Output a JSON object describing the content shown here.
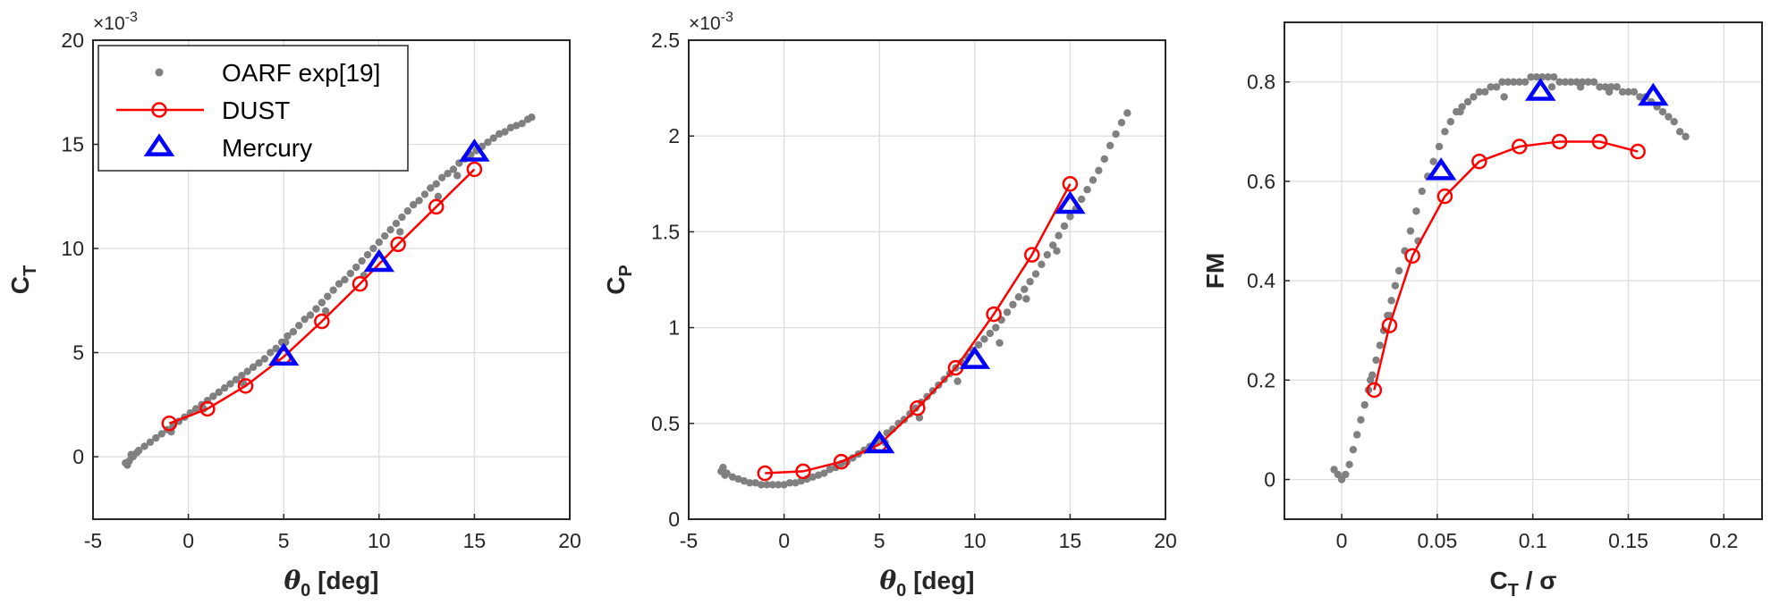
{
  "chart_data": [
    {
      "type": "scatter",
      "xlabel": "θ0 [deg]",
      "ylabel": "CT",
      "xlim": [
        -5,
        20
      ],
      "ylim": [
        -3,
        20
      ],
      "y_scale_label": "×10-3",
      "xticks": [
        "-5",
        "0",
        "5",
        "10",
        "15",
        "20"
      ],
      "yticks": [
        "0",
        "5",
        "10",
        "15",
        "20"
      ],
      "grid": true,
      "legend_position": "top-left",
      "series": [
        {
          "name": "OARF exp[19]",
          "marker": "dot",
          "x": [
            -3.3,
            -3.1,
            -2.9,
            -2.6,
            -2.3,
            -2.0,
            -1.7,
            -1.4,
            -1.1,
            -0.8,
            -0.5,
            -0.2,
            0.1,
            0.4,
            0.7,
            1.0,
            1.3,
            1.6,
            1.9,
            2.2,
            2.5,
            2.8,
            3.1,
            3.4,
            3.7,
            4.0,
            4.3,
            4.6,
            4.9,
            5.2,
            5.5,
            5.8,
            6.1,
            6.4,
            6.7,
            7.0,
            7.3,
            7.6,
            7.9,
            8.2,
            8.5,
            8.8,
            9.1,
            9.4,
            9.7,
            10.0,
            10.3,
            10.6,
            10.9,
            11.2,
            11.5,
            11.8,
            12.1,
            12.4,
            12.7,
            13.0,
            13.3,
            13.6,
            13.9,
            14.2,
            14.5,
            14.8,
            15.1,
            15.4,
            15.7,
            16.0,
            16.3,
            16.6,
            16.9,
            17.2,
            17.5,
            17.8,
            18.0,
            -3.2,
            -3.0,
            -2.7,
            -0.9,
            0.8,
            2.9,
            5.1,
            7.2,
            9.2,
            11.1,
            13.1,
            14.1
          ],
          "y": [
            -0.3,
            -0.2,
            0.0,
            0.3,
            0.5,
            0.7,
            0.9,
            1.1,
            1.3,
            1.5,
            1.7,
            1.9,
            2.1,
            2.3,
            2.5,
            2.7,
            2.9,
            3.1,
            3.3,
            3.5,
            3.7,
            3.9,
            4.1,
            4.3,
            4.5,
            4.7,
            5.0,
            5.2,
            5.5,
            5.8,
            6.0,
            6.3,
            6.6,
            6.8,
            7.1,
            7.4,
            7.7,
            8.0,
            8.3,
            8.5,
            8.8,
            9.1,
            9.4,
            9.7,
            10.0,
            10.3,
            10.6,
            10.9,
            11.2,
            11.5,
            11.8,
            12.1,
            12.3,
            12.6,
            12.9,
            13.1,
            13.4,
            13.6,
            13.8,
            14.1,
            14.3,
            14.5,
            14.7,
            14.9,
            15.1,
            15.3,
            15.5,
            15.6,
            15.8,
            15.9,
            16.0,
            16.2,
            16.3,
            -0.4,
            0.1,
            0.2,
            1.2,
            2.3,
            3.5,
            5.5,
            7.0,
            8.7,
            10.8,
            12.5,
            13.5
          ]
        },
        {
          "name": "DUST",
          "marker": "circle-line",
          "color": "#ff0000",
          "x": [
            -1,
            1,
            3,
            5,
            7,
            9,
            11,
            13,
            15
          ],
          "y": [
            1.6,
            2.3,
            3.4,
            4.8,
            6.5,
            8.3,
            10.2,
            12.0,
            13.8
          ]
        },
        {
          "name": "Mercury",
          "marker": "triangle",
          "color": "#0000ff",
          "x": [
            5,
            10,
            15
          ],
          "y": [
            4.8,
            9.3,
            14.6
          ]
        }
      ]
    },
    {
      "type": "scatter",
      "xlabel": "θ0 [deg]",
      "ylabel": "CP",
      "xlim": [
        -5,
        20
      ],
      "ylim": [
        0,
        2.5
      ],
      "y_scale_label": "×10-3",
      "xticks": [
        "-5",
        "0",
        "5",
        "10",
        "15",
        "20"
      ],
      "yticks": [
        "0",
        "0.5",
        "1",
        "1.5",
        "2",
        "2.5"
      ],
      "grid": true,
      "series": [
        {
          "name": "OARF exp[19]",
          "marker": "dot",
          "x": [
            -3.3,
            -3.0,
            -2.7,
            -2.4,
            -2.1,
            -1.8,
            -1.5,
            -1.2,
            -0.9,
            -0.6,
            -0.3,
            0.0,
            0.3,
            0.6,
            0.9,
            1.2,
            1.5,
            1.8,
            2.1,
            2.4,
            2.7,
            3.0,
            3.3,
            3.6,
            3.9,
            4.2,
            4.5,
            4.8,
            5.1,
            5.4,
            5.7,
            6.0,
            6.3,
            6.6,
            6.9,
            7.2,
            7.5,
            7.8,
            8.1,
            8.4,
            8.7,
            9.0,
            9.3,
            9.6,
            9.9,
            10.2,
            10.5,
            10.8,
            11.1,
            11.4,
            11.7,
            12.0,
            12.3,
            12.6,
            12.9,
            13.2,
            13.5,
            13.8,
            14.1,
            14.4,
            14.7,
            15.0,
            15.3,
            15.6,
            15.9,
            16.2,
            16.5,
            16.8,
            17.1,
            17.4,
            17.7,
            18.0,
            -3.2,
            -3.1,
            5.3,
            7.1,
            9.1,
            11.3,
            12.7,
            14.3
          ],
          "y": [
            0.25,
            0.24,
            0.22,
            0.21,
            0.2,
            0.19,
            0.19,
            0.18,
            0.18,
            0.18,
            0.18,
            0.18,
            0.19,
            0.19,
            0.2,
            0.21,
            0.22,
            0.23,
            0.24,
            0.26,
            0.27,
            0.29,
            0.3,
            0.32,
            0.34,
            0.36,
            0.38,
            0.4,
            0.42,
            0.45,
            0.47,
            0.5,
            0.52,
            0.55,
            0.58,
            0.61,
            0.64,
            0.67,
            0.7,
            0.73,
            0.76,
            0.79,
            0.82,
            0.85,
            0.88,
            0.91,
            0.94,
            0.97,
            1.0,
            1.04,
            1.08,
            1.12,
            1.16,
            1.2,
            1.24,
            1.28,
            1.33,
            1.38,
            1.43,
            1.48,
            1.53,
            1.58,
            1.62,
            1.67,
            1.72,
            1.77,
            1.82,
            1.88,
            1.95,
            2.01,
            2.07,
            2.12,
            0.27,
            0.23,
            0.4,
            0.53,
            0.72,
            0.92,
            1.15,
            1.4
          ]
        },
        {
          "name": "DUST",
          "marker": "circle-line",
          "color": "#ff0000",
          "x": [
            -1,
            1,
            3,
            5,
            7,
            9,
            11,
            13,
            15
          ],
          "y": [
            0.24,
            0.25,
            0.3,
            0.39,
            0.58,
            0.79,
            1.07,
            1.38,
            1.75
          ]
        },
        {
          "name": "Mercury",
          "marker": "triangle",
          "color": "#0000ff",
          "x": [
            5,
            10,
            15
          ],
          "y": [
            0.39,
            0.83,
            1.64
          ]
        }
      ]
    },
    {
      "type": "scatter",
      "xlabel": "CT / σ",
      "ylabel": "FM",
      "xlim": [
        -0.03,
        0.22
      ],
      "ylim": [
        -0.08,
        0.92
      ],
      "xticks": [
        "0",
        "0.05",
        "0.1",
        "0.15",
        "0.2"
      ],
      "yticks": [
        "0",
        "0.2",
        "0.4",
        "0.6",
        "0.8"
      ],
      "grid": true,
      "series": [
        {
          "name": "OARF exp[19]",
          "marker": "dot",
          "x": [
            -0.004,
            -0.002,
            0.0,
            0.002,
            0.004,
            0.006,
            0.008,
            0.01,
            0.012,
            0.014,
            0.016,
            0.018,
            0.02,
            0.022,
            0.024,
            0.026,
            0.028,
            0.03,
            0.033,
            0.036,
            0.039,
            0.042,
            0.045,
            0.048,
            0.051,
            0.054,
            0.057,
            0.06,
            0.063,
            0.066,
            0.069,
            0.072,
            0.075,
            0.078,
            0.081,
            0.084,
            0.087,
            0.09,
            0.093,
            0.096,
            0.099,
            0.102,
            0.105,
            0.108,
            0.111,
            0.114,
            0.117,
            0.12,
            0.123,
            0.126,
            0.129,
            0.132,
            0.135,
            0.138,
            0.141,
            0.144,
            0.147,
            0.15,
            0.153,
            0.156,
            0.159,
            0.162,
            0.165,
            0.168,
            0.171,
            0.174,
            0.177,
            0.18,
            0.015,
            0.025,
            0.04,
            0.062,
            0.085,
            0.11,
            0.125,
            0.14
          ],
          "y": [
            0.02,
            0.01,
            0.0,
            0.01,
            0.03,
            0.06,
            0.09,
            0.12,
            0.15,
            0.18,
            0.21,
            0.24,
            0.27,
            0.3,
            0.33,
            0.36,
            0.39,
            0.42,
            0.46,
            0.5,
            0.54,
            0.58,
            0.61,
            0.64,
            0.67,
            0.7,
            0.72,
            0.74,
            0.75,
            0.76,
            0.77,
            0.78,
            0.78,
            0.79,
            0.79,
            0.8,
            0.8,
            0.8,
            0.8,
            0.8,
            0.81,
            0.81,
            0.81,
            0.81,
            0.81,
            0.8,
            0.8,
            0.8,
            0.8,
            0.8,
            0.8,
            0.8,
            0.79,
            0.79,
            0.79,
            0.79,
            0.78,
            0.78,
            0.78,
            0.77,
            0.77,
            0.76,
            0.75,
            0.74,
            0.73,
            0.72,
            0.7,
            0.69,
            0.2,
            0.33,
            0.48,
            0.74,
            0.77,
            0.79,
            0.79,
            0.78
          ]
        },
        {
          "name": "DUST",
          "marker": "circle-line",
          "color": "#ff0000",
          "x": [
            0.017,
            0.025,
            0.037,
            0.054,
            0.072,
            0.093,
            0.114,
            0.135,
            0.155
          ],
          "y": [
            0.18,
            0.31,
            0.45,
            0.57,
            0.64,
            0.67,
            0.68,
            0.68,
            0.66
          ]
        },
        {
          "name": "Mercury",
          "marker": "triangle",
          "color": "#0000ff",
          "x": [
            0.052,
            0.104,
            0.163
          ],
          "y": [
            0.62,
            0.78,
            0.77
          ]
        }
      ]
    }
  ]
}
